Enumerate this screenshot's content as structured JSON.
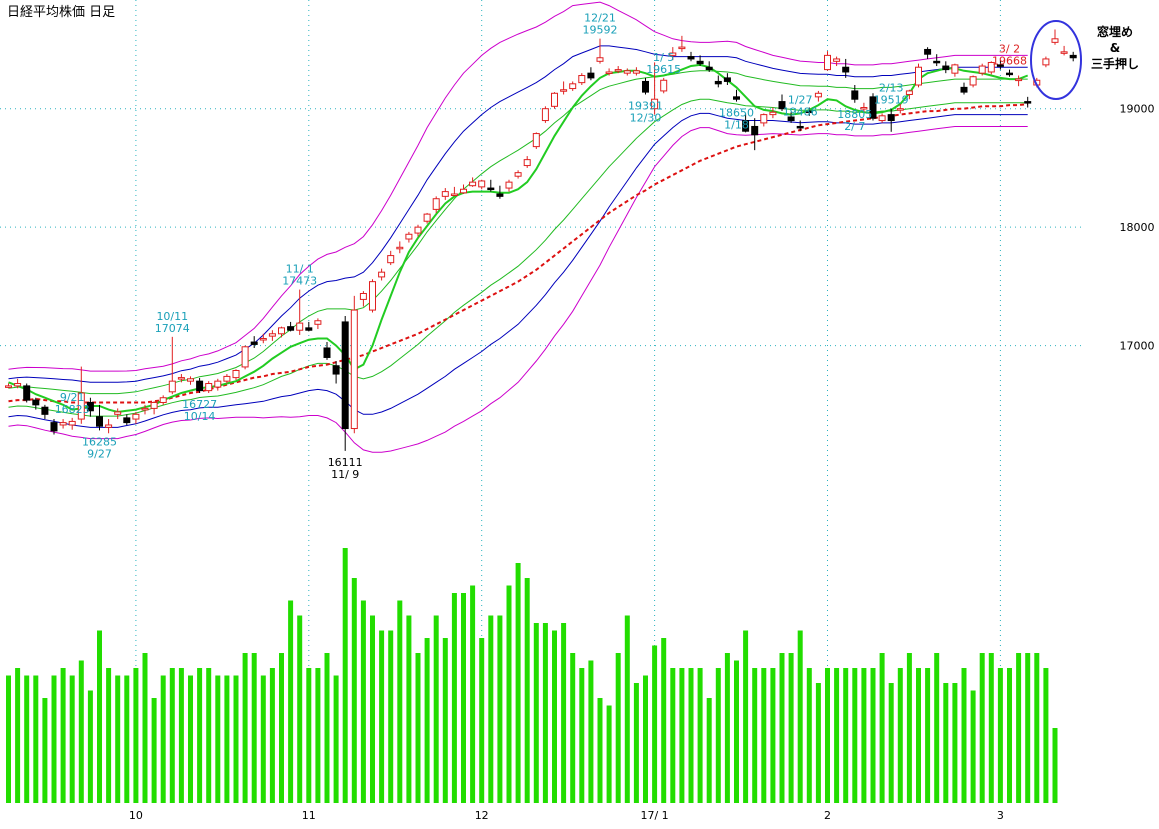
{
  "title": "日経平均株価 日足",
  "note": {
    "line1": "窓埋め",
    "line2": "&",
    "line3": "三手押し"
  },
  "colors": {
    "up_candle": "#e02020",
    "down_candle": "#000000",
    "ma_short": "#22cc22",
    "ma_long": "#dd1111",
    "bb_1sigma": "#22bb22",
    "bb_2sigma": "#0000bb",
    "bb_3sigma": "#cc00cc",
    "volume": "#22dd00",
    "grid": "#2ab3c0",
    "annotation_low": "#1aa0b8",
    "annotation_recent": "#dd2222",
    "highlight_ellipse": "#3333dd"
  },
  "chart_data": {
    "type": "candlestick",
    "y_axis": {
      "ticks": [
        17000,
        18000,
        19000
      ],
      "range": [
        15950,
        19850
      ]
    },
    "x_axis": {
      "ticks": [
        {
          "label": "10",
          "index": 14
        },
        {
          "label": "11",
          "index": 33
        },
        {
          "label": "12",
          "index": 52
        },
        {
          "label": "17/ 1",
          "index": 71
        },
        {
          "label": "2",
          "index": 90
        },
        {
          "label": "3",
          "index": 109
        }
      ]
    },
    "annotations": [
      {
        "date": "9/21",
        "value": "16823",
        "index": 7,
        "pos": "above",
        "kind": "high"
      },
      {
        "date": "9/27",
        "value": "16285",
        "index": 10,
        "pos": "below",
        "kind": "low"
      },
      {
        "date": "10/11",
        "value": "17074",
        "index": 18,
        "pos": "above",
        "kind": "high"
      },
      {
        "date": "10/14",
        "value": "16727",
        "index": 21,
        "pos": "below",
        "kind": "low"
      },
      {
        "date": "11/ 1",
        "value": "17473",
        "index": 32,
        "pos": "above",
        "kind": "high"
      },
      {
        "date": "11/ 9",
        "value": "16111",
        "index": 37,
        "pos": "below",
        "kind": "low_black"
      },
      {
        "date": "12/21",
        "value": "19592",
        "index": 65,
        "pos": "above",
        "kind": "high"
      },
      {
        "date": "12/30",
        "value": "19391",
        "index": 70,
        "pos": "below",
        "kind": "low"
      },
      {
        "date": "1/ 5",
        "value": "19615",
        "index": 72,
        "pos": "above",
        "kind": "high"
      },
      {
        "date": "1/18",
        "value": "18650",
        "index": 80,
        "pos": "below",
        "kind": "low"
      },
      {
        "date": "1/27",
        "value": "19486",
        "index": 87,
        "pos": "above",
        "kind": "high"
      },
      {
        "date": "2/ 7",
        "value": "18805",
        "index": 93,
        "pos": "below",
        "kind": "low"
      },
      {
        "date": "2/13",
        "value": "19519",
        "index": 97,
        "pos": "above",
        "kind": "high"
      },
      {
        "date": "3/ 2",
        "value": "19668",
        "index": 110,
        "pos": "above",
        "kind": "recent"
      }
    ],
    "candles": [
      [
        16650,
        16680,
        16640,
        16660
      ],
      [
        16660,
        16720,
        16640,
        16680
      ],
      [
        16660,
        16680,
        16520,
        16540
      ],
      [
        16540,
        16560,
        16460,
        16500
      ],
      [
        16480,
        16500,
        16380,
        16420
      ],
      [
        16350,
        16380,
        16250,
        16280
      ],
      [
        16330,
        16380,
        16300,
        16350
      ],
      [
        16330,
        16390,
        16290,
        16360
      ],
      [
        16380,
        16823,
        16340,
        16600
      ],
      [
        16520,
        16560,
        16400,
        16450
      ],
      [
        16400,
        16500,
        16285,
        16320
      ],
      [
        16310,
        16380,
        16260,
        16330
      ],
      [
        16420,
        16470,
        16380,
        16440
      ],
      [
        16390,
        16420,
        16330,
        16350
      ],
      [
        16380,
        16440,
        16340,
        16420
      ],
      [
        16460,
        16500,
        16420,
        16470
      ],
      [
        16470,
        16530,
        16420,
        16520
      ],
      [
        16520,
        16580,
        16500,
        16560
      ],
      [
        16610,
        17074,
        16590,
        16700
      ],
      [
        16720,
        16760,
        16690,
        16730
      ],
      [
        16700,
        16740,
        16670,
        16720
      ],
      [
        16700,
        16727,
        16600,
        16620
      ],
      [
        16620,
        16700,
        16600,
        16680
      ],
      [
        16650,
        16720,
        16620,
        16700
      ],
      [
        16700,
        16760,
        16680,
        16740
      ],
      [
        16730,
        16800,
        16710,
        16790
      ],
      [
        16820,
        17000,
        16800,
        16990
      ],
      [
        17030,
        17080,
        16980,
        17010
      ],
      [
        17050,
        17100,
        17020,
        17060
      ],
      [
        17080,
        17130,
        17040,
        17100
      ],
      [
        17100,
        17160,
        17070,
        17150
      ],
      [
        17160,
        17200,
        17120,
        17130
      ],
      [
        17130,
        17473,
        17090,
        17190
      ],
      [
        17150,
        17200,
        17120,
        17130
      ],
      [
        17180,
        17230,
        17140,
        17210
      ],
      [
        16980,
        17030,
        16880,
        16900
      ],
      [
        16830,
        16870,
        16680,
        16760
      ],
      [
        17200,
        17250,
        16111,
        16300
      ],
      [
        16300,
        17420,
        16260,
        17300
      ],
      [
        17390,
        17460,
        17330,
        17440
      ],
      [
        17300,
        17560,
        17280,
        17540
      ],
      [
        17580,
        17650,
        17550,
        17620
      ],
      [
        17700,
        17800,
        17680,
        17760
      ],
      [
        17820,
        17880,
        17780,
        17830
      ],
      [
        17900,
        17960,
        17870,
        17940
      ],
      [
        17950,
        18020,
        17920,
        18000
      ],
      [
        18050,
        18120,
        18030,
        18110
      ],
      [
        18150,
        18260,
        18120,
        18240
      ],
      [
        18260,
        18330,
        18230,
        18300
      ],
      [
        18270,
        18340,
        18260,
        18280
      ],
      [
        18290,
        18360,
        18280,
        18320
      ],
      [
        18350,
        18420,
        18340,
        18380
      ],
      [
        18340,
        18400,
        18320,
        18390
      ],
      [
        18330,
        18400,
        18300,
        18320
      ],
      [
        18280,
        18350,
        18240,
        18260
      ],
      [
        18330,
        18400,
        18300,
        18380
      ],
      [
        18430,
        18480,
        18410,
        18460
      ],
      [
        18520,
        18600,
        18500,
        18570
      ],
      [
        18680,
        18800,
        18660,
        18790
      ],
      [
        18900,
        19020,
        18880,
        19000
      ],
      [
        19020,
        19140,
        19000,
        19130
      ],
      [
        19150,
        19230,
        19120,
        19160
      ],
      [
        19170,
        19230,
        19150,
        19210
      ],
      [
        19220,
        19300,
        19200,
        19280
      ],
      [
        19300,
        19350,
        19240,
        19260
      ],
      [
        19400,
        19592,
        19380,
        19430
      ],
      [
        19300,
        19340,
        19280,
        19310
      ],
      [
        19320,
        19360,
        19300,
        19330
      ],
      [
        19300,
        19340,
        19280,
        19320
      ],
      [
        19300,
        19350,
        19280,
        19320
      ],
      [
        19230,
        19260,
        19120,
        19140
      ],
      [
        19000,
        19391,
        18950,
        19080
      ],
      [
        19150,
        19260,
        19130,
        19240
      ],
      [
        19450,
        19520,
        19410,
        19470
      ],
      [
        19520,
        19615,
        19480,
        19520
      ],
      [
        19440,
        19480,
        19400,
        19420
      ],
      [
        19400,
        19450,
        19360,
        19380
      ],
      [
        19350,
        19400,
        19310,
        19330
      ],
      [
        19230,
        19280,
        19180,
        19210
      ],
      [
        19260,
        19300,
        19200,
        19230
      ],
      [
        19100,
        19160,
        19060,
        19080
      ],
      [
        18900,
        18960,
        18800,
        18810
      ],
      [
        18850,
        18920,
        18650,
        18780
      ],
      [
        18880,
        18960,
        18850,
        18950
      ],
      [
        18950,
        19010,
        18920,
        18970
      ],
      [
        19060,
        19120,
        18980,
        19000
      ],
      [
        18930,
        18970,
        18880,
        18900
      ],
      [
        18850,
        18900,
        18810,
        18840
      ],
      [
        18980,
        19010,
        18940,
        18970
      ],
      [
        19100,
        19150,
        19060,
        19130
      ],
      [
        19330,
        19486,
        19320,
        19450
      ],
      [
        19400,
        19440,
        19360,
        19420
      ],
      [
        19350,
        19420,
        19260,
        19310
      ],
      [
        19150,
        19200,
        19050,
        19080
      ],
      [
        19000,
        19050,
        18970,
        19010
      ],
      [
        19100,
        19130,
        18900,
        18920
      ],
      [
        18900,
        18960,
        18880,
        18940
      ],
      [
        18950,
        19000,
        18805,
        18900
      ],
      [
        18990,
        19040,
        18960,
        19000
      ],
      [
        19120,
        19160,
        19080,
        19150
      ],
      [
        19200,
        19380,
        19180,
        19350
      ],
      [
        19500,
        19519,
        19420,
        19460
      ],
      [
        19400,
        19460,
        19360,
        19390
      ],
      [
        19360,
        19400,
        19300,
        19330
      ],
      [
        19300,
        19380,
        19270,
        19370
      ],
      [
        19180,
        19220,
        19120,
        19140
      ],
      [
        19200,
        19280,
        19180,
        19270
      ],
      [
        19300,
        19380,
        19280,
        19360
      ],
      [
        19310,
        19400,
        19290,
        19390
      ],
      [
        19370,
        19410,
        19330,
        19360
      ],
      [
        19300,
        19330,
        19270,
        19290
      ],
      [
        19240,
        19280,
        19190,
        19250
      ],
      [
        19060,
        19100,
        19010,
        19050
      ],
      [
        19200,
        19260,
        19180,
        19240
      ],
      [
        19370,
        19440,
        19350,
        19420
      ],
      [
        19560,
        19668,
        19540,
        19590
      ],
      [
        19480,
        19530,
        19450,
        19480
      ],
      [
        19450,
        19480,
        19400,
        19430
      ]
    ],
    "volumes": [
      17,
      18,
      17,
      17,
      14,
      17,
      18,
      17,
      19,
      15,
      23,
      18,
      17,
      17,
      18,
      20,
      14,
      17,
      18,
      18,
      17,
      18,
      18,
      17,
      17,
      17,
      20,
      20,
      17,
      18,
      20,
      27,
      25,
      18,
      18,
      20,
      17,
      34,
      30,
      27,
      25,
      23,
      23,
      27,
      25,
      20,
      22,
      25,
      22,
      28,
      28,
      29,
      22,
      25,
      25,
      29,
      32,
      30,
      24,
      24,
      23,
      24,
      20,
      18,
      19,
      14,
      13,
      20,
      25,
      16,
      17,
      21,
      22,
      18,
      18,
      18,
      18,
      14,
      18,
      20,
      19,
      23,
      18,
      18,
      18,
      20,
      20,
      23,
      18,
      16,
      18,
      18,
      18,
      18,
      18,
      18,
      20,
      16,
      18,
      20,
      18,
      18,
      20,
      16,
      16,
      18,
      15,
      20,
      20,
      18,
      18,
      20,
      20,
      20,
      18,
      10
    ],
    "ma_short": [
      16690,
      16660,
      16630,
      16590,
      16560,
      16530,
      16500,
      16460,
      16470,
      16490,
      16490,
      16460,
      16440,
      16450,
      16460,
      16480,
      16500,
      16540,
      16570,
      16600,
      16620,
      16640,
      16650,
      16660,
      16680,
      16700,
      16740,
      16780,
      16830,
      16890,
      16940,
      16990,
      17020,
      17050,
      17060,
      17060,
      17000,
      16920,
      16800,
      16840,
      17000,
      17220,
      17420,
      17620,
      17790,
      17910,
      18010,
      18110,
      18200,
      18260,
      18290,
      18300,
      18300,
      18300,
      18290,
      18290,
      18320,
      18380,
      18490,
      18630,
      18770,
      18890,
      19010,
      19110,
      19190,
      19260,
      19300,
      19310,
      19320,
      19320,
      19300,
      19270,
      19280,
      19300,
      19330,
      19360,
      19370,
      19350,
      19300,
      19240,
      19180,
      19100,
      19020,
      18990,
      18980,
      18960,
      18950,
      18960,
      18990,
      19030,
      19080,
      19070,
      19020,
      18990,
      18970,
      18960,
      18970,
      18990,
      19040,
      19130,
      19250,
      19300,
      19320,
      19340,
      19340,
      19320,
      19310,
      19300,
      19280,
      19260,
      19250,
      19250,
      19280
    ],
    "ma_long": [
      16530,
      16540,
      16540,
      16550,
      16540,
      16530,
      16530,
      16520,
      16520,
      16520,
      16520,
      16520,
      16520,
      16520,
      16520,
      16520,
      16530,
      16540,
      16560,
      16580,
      16600,
      16610,
      16630,
      16650,
      16670,
      16690,
      16710,
      16730,
      16740,
      16760,
      16770,
      16780,
      16800,
      16820,
      16830,
      16840,
      16860,
      16880,
      16900,
      16920,
      16950,
      16980,
      17010,
      17040,
      17070,
      17100,
      17140,
      17180,
      17220,
      17260,
      17300,
      17340,
      17380,
      17420,
      17460,
      17500,
      17540,
      17590,
      17640,
      17700,
      17760,
      17820,
      17880,
      17940,
      18000,
      18060,
      18120,
      18170,
      18220,
      18270,
      18310,
      18360,
      18400,
      18440,
      18480,
      18520,
      18560,
      18590,
      18620,
      18650,
      18680,
      18700,
      18720,
      18740,
      18760,
      18780,
      18800,
      18820,
      18840,
      18860,
      18870,
      18880,
      18890,
      18900,
      18910,
      18920,
      18930,
      18940,
      18950,
      18960,
      18970,
      18980,
      18980,
      18990,
      19000,
      19000,
      19010,
      19020,
      19020,
      19020,
      19030,
      19030,
      19040
    ],
    "bb_mid": [
      16560,
      16570,
      16570,
      16560,
      16550,
      16540,
      16530,
      16520,
      16510,
      16500,
      16500,
      16500,
      16500,
      16510,
      16520,
      16540,
      16560,
      16580,
      16600,
      16620,
      16630,
      16650,
      16660,
      16670,
      16690,
      16710,
      16740,
      16770,
      16810,
      16860,
      16910,
      16950,
      17000,
      17040,
      17070,
      17080,
      17070,
      17050,
      17020,
      17020,
      17060,
      17120,
      17190,
      17270,
      17350,
      17430,
      17520,
      17600,
      17680,
      17760,
      17830,
      17890,
      17950,
      18010,
      18060,
      18110,
      18160,
      18220,
      18280,
      18350,
      18430,
      18500,
      18580,
      18650,
      18720,
      18790,
      18850,
      18900,
      18950,
      19000,
      19040,
      19080,
      19110,
      19140,
      19170,
      19190,
      19200,
      19200,
      19190,
      19180,
      19170,
      19150,
      19140,
      19130,
      19120,
      19110,
      19100,
      19090,
      19090,
      19090,
      19090,
      19080,
      19080,
      19070,
      19070,
      19070,
      19080,
      19080,
      19090,
      19100,
      19110,
      19120,
      19130,
      19140,
      19150,
      19150,
      19150,
      19150,
      19150,
      19150,
      19150,
      19150,
      19150
    ],
    "bb_sigma": [
      80,
      80,
      82,
      85,
      88,
      90,
      92,
      95,
      95,
      95,
      95,
      95,
      95,
      92,
      90,
      88,
      85,
      82,
      82,
      84,
      86,
      88,
      90,
      95,
      100,
      105,
      115,
      125,
      140,
      155,
      170,
      185,
      200,
      210,
      220,
      230,
      240,
      260,
      280,
      300,
      320,
      340,
      360,
      380,
      400,
      420,
      440,
      455,
      470,
      480,
      490,
      495,
      500,
      500,
      500,
      495,
      490,
      480,
      470,
      460,
      450,
      440,
      430,
      410,
      390,
      370,
      340,
      310,
      280,
      250,
      220,
      190,
      170,
      150,
      135,
      125,
      120,
      120,
      125,
      130,
      130,
      125,
      120,
      115,
      110,
      108,
      106,
      104,
      102,
      100,
      100,
      100,
      100,
      100,
      100,
      100,
      100,
      100,
      100,
      100,
      100,
      100,
      100,
      100,
      100,
      100,
      100,
      100,
      100,
      100,
      100,
      100,
      100
    ]
  }
}
